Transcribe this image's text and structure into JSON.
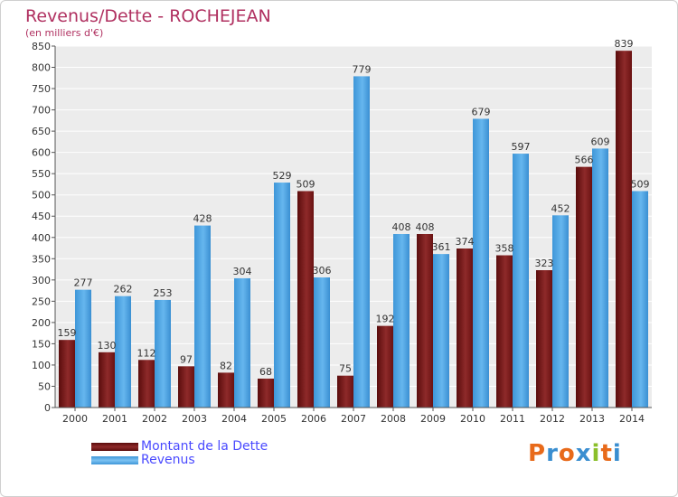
{
  "chart_data": {
    "type": "bar",
    "title": "Revenus/Dette - ROCHEJEAN",
    "subtitle": "(en milliers d'€)",
    "categories": [
      "2000",
      "2001",
      "2002",
      "2003",
      "2004",
      "2005",
      "2006",
      "2007",
      "2008",
      "2009",
      "2010",
      "2011",
      "2012",
      "2013",
      "2014"
    ],
    "series": [
      {
        "name": "Montant de la Dette",
        "color": "#7a1818",
        "values": [
          159,
          130,
          112,
          97,
          82,
          68,
          509,
          75,
          192,
          408,
          374,
          358,
          323,
          566,
          839
        ]
      },
      {
        "name": "Revenus",
        "color": "#4fa6e3",
        "values": [
          277,
          262,
          253,
          428,
          304,
          529,
          306,
          779,
          408,
          361,
          679,
          597,
          452,
          609,
          509
        ]
      }
    ],
    "ylim": [
      0,
      850
    ],
    "ytick_step": 50,
    "grid": true,
    "legend_position": "bottom-left"
  },
  "logo": {
    "text": "Proxiti",
    "colors": [
      "#e86a1a",
      "#3a8ed0",
      "#e86a1a",
      "#3a8ed0",
      "#8bbf2a",
      "#e86a1a",
      "#3a8ed0"
    ]
  }
}
